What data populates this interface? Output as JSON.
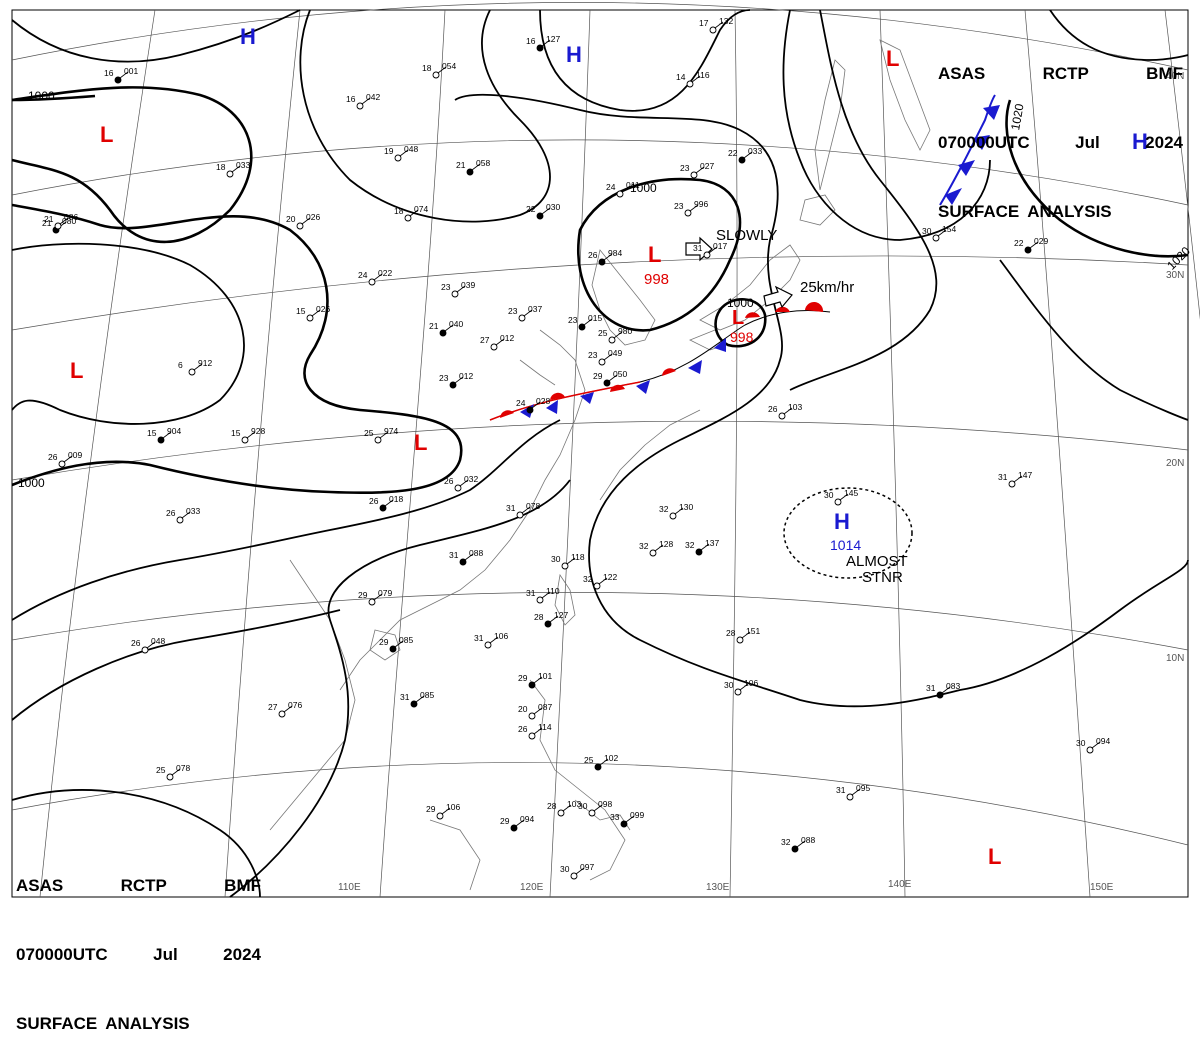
{
  "header": {
    "line1": [
      "ASAS",
      "RCTP",
      "BMF"
    ],
    "line2": [
      "070000UTC",
      "Jul",
      "2024"
    ],
    "line3": [
      "SURFACE",
      "ANALYSIS"
    ]
  },
  "longitude_labels": [
    "110E",
    "120E",
    "130E",
    "140E",
    "150E"
  ],
  "latitude_labels": [
    "40N",
    "30N",
    "20N",
    "10N"
  ],
  "isobar_labels": [
    "1000",
    "1000",
    "1000",
    "1000",
    "1020",
    "1020"
  ],
  "pressure_centers": [
    {
      "type": "H",
      "color": "#1a1ad0"
    },
    {
      "type": "H",
      "color": "#1a1ad0"
    },
    {
      "type": "H",
      "color": "#1a1ad0"
    },
    {
      "type": "L",
      "color": "#e00000"
    },
    {
      "type": "L",
      "color": "#e00000"
    },
    {
      "type": "L",
      "color": "#e00000"
    },
    {
      "type": "L",
      "color": "#e00000",
      "value": "998"
    },
    {
      "type": "L",
      "color": "#e00000",
      "value": "998"
    },
    {
      "type": "L",
      "color": "#e00000"
    },
    {
      "type": "L",
      "color": "#e00000"
    },
    {
      "type": "H",
      "color": "#1a1ad0",
      "value": "1014"
    }
  ],
  "annotations": {
    "slowly": "SLOWLY",
    "speed": "25km/hr",
    "almost": "ALMOST",
    "stnr": "STNR"
  },
  "stations": [
    [
      "16",
      "001"
    ],
    [
      "16",
      "042"
    ],
    [
      "18",
      "054"
    ],
    [
      "16",
      "127"
    ],
    [
      "19",
      "048"
    ],
    [
      "18",
      "033"
    ],
    [
      "21",
      "058"
    ],
    [
      "20",
      "026"
    ],
    [
      "18",
      "074"
    ],
    [
      "22",
      "030"
    ],
    [
      "24",
      "011"
    ],
    [
      "23",
      "996"
    ],
    [
      "26",
      "984"
    ],
    [
      "24",
      "022"
    ],
    [
      "23",
      "039"
    ],
    [
      "21",
      "040"
    ],
    [
      "23",
      "037"
    ],
    [
      "27",
      "012"
    ],
    [
      "23",
      "015"
    ],
    [
      "25",
      "980"
    ],
    [
      "23",
      "049"
    ],
    [
      "23",
      "012"
    ],
    [
      "15",
      "026"
    ],
    [
      "6",
      "912"
    ],
    [
      "15",
      "904"
    ],
    [
      "15",
      "928"
    ],
    [
      "25",
      "974"
    ],
    [
      "24",
      "028"
    ],
    [
      "26",
      "009"
    ],
    [
      "26",
      "033"
    ],
    [
      "26",
      "018"
    ],
    [
      "26",
      "032"
    ],
    [
      "31",
      "078"
    ],
    [
      "31",
      "088"
    ],
    [
      "30",
      "118"
    ],
    [
      "31",
      "110"
    ],
    [
      "28",
      "127"
    ],
    [
      "32",
      "122"
    ],
    [
      "32",
      "128"
    ],
    [
      "32",
      "137"
    ],
    [
      "32",
      "130"
    ],
    [
      "29",
      "079"
    ],
    [
      "29",
      "085"
    ],
    [
      "31",
      "106"
    ],
    [
      "26",
      "048"
    ],
    [
      "31",
      "085"
    ],
    [
      "27",
      "076"
    ],
    [
      "25",
      "078"
    ],
    [
      "29",
      "101"
    ],
    [
      "20",
      "087"
    ],
    [
      "26",
      "114"
    ],
    [
      "25",
      "102"
    ],
    [
      "28",
      "103"
    ],
    [
      "30",
      "098"
    ],
    [
      "29",
      "094"
    ],
    [
      "29",
      "106"
    ],
    [
      "30",
      "097"
    ],
    [
      "33",
      "099"
    ],
    [
      "28",
      "151"
    ],
    [
      "30",
      "106"
    ],
    [
      "31",
      "083"
    ],
    [
      "30",
      "094"
    ],
    [
      "31",
      "095"
    ],
    [
      "32",
      "088"
    ],
    [
      "30",
      "145"
    ],
    [
      "31",
      "147"
    ],
    [
      "22",
      "029"
    ],
    [
      "30",
      "154"
    ],
    [
      "26",
      "103"
    ],
    [
      "29",
      "050"
    ],
    [
      "17",
      "132"
    ],
    [
      "14",
      "116"
    ],
    [
      "22",
      "033"
    ],
    [
      "23",
      "027"
    ],
    [
      "31",
      "017"
    ],
    [
      "21",
      "080"
    ],
    [
      "21",
      "086"
    ]
  ]
}
